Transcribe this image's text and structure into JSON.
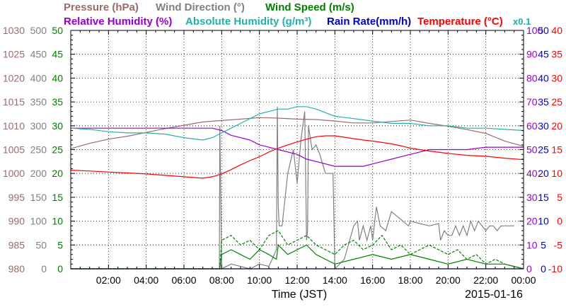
{
  "chart_data": {
    "type": "line",
    "date": "2015-01-16",
    "xlabel": "Time (JST)",
    "x_ticks": [
      "02:00",
      "04:00",
      "06:00",
      "08:00",
      "10:00",
      "12:00",
      "14:00",
      "16:00",
      "18:00",
      "20:00",
      "22:00",
      "00:00"
    ],
    "x_range_hours": [
      0,
      24
    ],
    "grid": true,
    "legend_row1": [
      {
        "text": "Pressure (hPa)",
        "color": "#9b6b6b"
      },
      {
        "text": "Wind Direction (°)",
        "color": "#808080"
      },
      {
        "text": "Wind Speed (m/s)",
        "color": "#008000"
      }
    ],
    "legend_row2": [
      {
        "text": "Relative Humidity (%)",
        "color": "#9400d3"
      },
      {
        "text": "Absolute Humidity (g/m³)",
        "color": "#20b2aa"
      },
      {
        "text": "Rain Rate(mm/h)",
        "color": "#0000cd"
      },
      {
        "text": "Temperature (°C)",
        "color": "#ff0000"
      },
      {
        "text": "x0.1",
        "color": "#20b2aa"
      }
    ],
    "axes": {
      "pressure": {
        "color": "#9b6b6b",
        "ticks": [
          "980",
          "985",
          "990",
          "995",
          "1000",
          "1005",
          "1010",
          "1015",
          "1020",
          "1025",
          "1030"
        ],
        "range": [
          980,
          1030
        ]
      },
      "wind_dir": {
        "color": "#808080",
        "ticks": [
          "0",
          "50",
          "100",
          "150",
          "200",
          "250",
          "300",
          "350",
          "400",
          "450",
          "500"
        ],
        "range": [
          0,
          500
        ]
      },
      "wind_speed": {
        "color": "#008000",
        "ticks": [
          "0",
          "5",
          "10",
          "15",
          "20",
          "25",
          "30",
          "35",
          "40",
          "45",
          "50"
        ],
        "range": [
          0,
          50
        ]
      },
      "humidity": {
        "color": "#9400d3",
        "ticks": [
          "0",
          "10",
          "20",
          "30",
          "40",
          "50",
          "60",
          "70",
          "80",
          "90",
          "100"
        ],
        "range": [
          0,
          100
        ]
      },
      "rain": {
        "color": "#0000cd",
        "ticks": [
          "0",
          "5",
          "10",
          "15",
          "20",
          "25",
          "30",
          "35",
          "40",
          "45",
          "50"
        ],
        "range": [
          0,
          50
        ]
      },
      "temperature": {
        "color": "#ff0000",
        "ticks": [
          "-10",
          "-5",
          "0",
          "5",
          "10",
          "15",
          "20",
          "25",
          "30",
          "35",
          "40"
        ],
        "range": [
          -10,
          40
        ]
      }
    },
    "series": [
      {
        "key": "pressure",
        "axis": "pressure",
        "color": "#9b6b6b",
        "dashed": false,
        "x": [
          0,
          1,
          2,
          3,
          4,
          5,
          6,
          7,
          8,
          9,
          10,
          11,
          12,
          13,
          14,
          15,
          16,
          17,
          18,
          19,
          20,
          21,
          22,
          23,
          24
        ],
        "y": [
          1005.2,
          1006.3,
          1007.2,
          1007.8,
          1008.6,
          1009.4,
          1010.1,
          1010.8,
          1011.1,
          1011.4,
          1011.7,
          1011.6,
          1011.4,
          1011.3,
          1011.0,
          1010.6,
          1010.6,
          1010.9,
          1011.2,
          1010.5,
          1009.9,
          1009.2,
          1008.4,
          1006.8,
          1005.7
        ]
      },
      {
        "key": "wind_direction",
        "axis": "wind_dir",
        "color": "#808080",
        "dashed": false,
        "x": [
          7.88,
          7.9,
          8.0,
          8.5,
          9.0,
          9.5,
          10.0,
          10.5,
          10.9,
          10.95,
          11.0,
          11.05,
          11.2,
          11.5,
          11.8,
          12.0,
          12.2,
          12.4,
          12.5,
          12.55,
          12.6,
          12.75,
          12.8,
          13.0,
          13.2,
          13.5,
          13.8,
          13.9,
          14.0,
          14.5,
          15.0,
          15.2,
          15.3,
          15.5,
          15.7,
          15.9,
          16.0,
          16.2,
          16.4,
          16.7,
          17.0,
          17.3,
          17.6,
          17.9,
          18.0,
          18.5,
          19.0,
          19.5,
          19.6,
          19.8,
          20.0,
          20.2,
          20.4,
          20.6,
          20.8,
          21.0,
          21.2,
          21.4,
          21.6,
          21.8,
          22.0,
          22.2,
          22.4,
          22.6,
          22.8,
          23.0,
          23.5
        ],
        "y": [
          0,
          300,
          0,
          10,
          5,
          0,
          10,
          5,
          40,
          340,
          130,
          90,
          90,
          200,
          250,
          180,
          270,
          330,
          60,
          80,
          300,
          260,
          250,
          260,
          240,
          200,
          200,
          200,
          0,
          20,
          90,
          100,
          60,
          90,
          60,
          90,
          60,
          130,
          90,
          80,
          120,
          110,
          100,
          90,
          100,
          95,
          90,
          95,
          60,
          80,
          70,
          70,
          90,
          70,
          90,
          70,
          100,
          80,
          100,
          90,
          80,
          90,
          90,
          80,
          90,
          90,
          90
        ]
      },
      {
        "key": "wind_speed",
        "axis": "wind_speed",
        "color": "#008000",
        "dashed": false,
        "x": [
          0,
          7.9,
          8.0,
          8.5,
          9.0,
          9.5,
          10.0,
          10.5,
          10.9,
          11.0,
          11.5,
          12.0,
          12.5,
          13.0,
          13.5,
          14.0,
          15.0,
          16.0,
          17.0,
          18.0,
          19.0,
          20.0,
          21.0,
          22.0,
          23.0,
          24.0
        ],
        "y": [
          0,
          0,
          3,
          4,
          3,
          2,
          4,
          3,
          2,
          5,
          3,
          4,
          5,
          3,
          2,
          1,
          2,
          3,
          2,
          3,
          2,
          1,
          2,
          1,
          1,
          0
        ]
      },
      {
        "key": "wind_speed_gust",
        "axis": "wind_speed",
        "color": "#008000",
        "dashed": true,
        "x": [
          0,
          7.9,
          8.0,
          8.5,
          9.0,
          9.5,
          10.0,
          10.5,
          11.0,
          11.5,
          12.0,
          12.5,
          13.0,
          13.5,
          14.0,
          14.5,
          15.0,
          15.5,
          16.0,
          16.5,
          17.0,
          17.5,
          18.0,
          18.5,
          19.0,
          19.5,
          20.0,
          20.5,
          21.0,
          21.5,
          22.0,
          22.5,
          23.0,
          24.0
        ],
        "y": [
          0,
          0,
          6,
          7,
          5,
          6,
          4,
          7,
          8,
          5,
          6,
          7,
          5,
          4,
          3,
          5,
          6,
          4,
          5,
          7,
          4,
          5,
          3,
          4,
          5,
          4,
          3,
          4,
          2,
          3,
          1,
          2,
          1,
          0
        ]
      },
      {
        "key": "relative_humidity",
        "axis": "humidity",
        "color": "#9400d3",
        "dashed": false,
        "x": [
          0,
          1,
          2,
          3,
          4,
          5,
          6,
          7,
          7.5,
          8.0,
          8.5,
          9.0,
          9.5,
          10.0,
          10.5,
          11.0,
          12.0,
          12.5,
          13.0,
          13.5,
          14.0,
          14.5,
          15.0,
          15.5,
          16.0,
          16.5,
          17.0,
          17.5,
          18.0,
          18.5,
          19.0,
          19.5,
          20.0,
          21.0,
          22.0,
          23.0,
          24.0
        ],
        "y": [
          59,
          59,
          59,
          59,
          59,
          59,
          59,
          59,
          59,
          58,
          56,
          55,
          54,
          52,
          51,
          50,
          48,
          46,
          45,
          44,
          43,
          43,
          43,
          43,
          44,
          45,
          46,
          47,
          48,
          49,
          50,
          50,
          50,
          50,
          51,
          51,
          51
        ]
      },
      {
        "key": "absolute_humidity",
        "axis": "humidity",
        "color": "#20b2aa",
        "dashed": false,
        "x": [
          0,
          1,
          2,
          3,
          4,
          5,
          6,
          7,
          7.5,
          8.0,
          8.5,
          9.0,
          9.5,
          10.0,
          10.5,
          11.0,
          11.5,
          12.0,
          12.5,
          13.0,
          14.0,
          15.0,
          16.0,
          17.0,
          18.0,
          19.0,
          20.0,
          21.0,
          22.0,
          23.0,
          24.0
        ],
        "y": [
          59,
          58.5,
          57.5,
          57,
          57,
          56.5,
          55,
          54,
          55,
          57,
          59,
          61,
          63,
          65,
          66,
          67,
          67,
          68,
          68,
          67,
          64,
          63,
          62,
          61,
          61,
          60,
          60,
          59,
          59,
          58.5,
          58
        ]
      },
      {
        "key": "temperature",
        "axis": "temperature",
        "color": "#ff0000",
        "dashed": false,
        "x": [
          0,
          1,
          2,
          3,
          4,
          5,
          6,
          7,
          7.5,
          8.0,
          8.5,
          9.0,
          9.5,
          10.0,
          10.5,
          11.0,
          11.5,
          12.0,
          12.5,
          13.0,
          13.5,
          14.0,
          14.5,
          15.0,
          15.5,
          16.0,
          16.5,
          17.0,
          17.5,
          18.0,
          19.0,
          20.0,
          21.0,
          22.0,
          23.0,
          24.0
        ],
        "y": [
          10.7,
          10.5,
          10.3,
          10.1,
          9.9,
          9.6,
          9.3,
          9.0,
          9.3,
          9.9,
          10.8,
          11.8,
          12.7,
          13.5,
          14.5,
          15.3,
          16.0,
          16.6,
          17.2,
          17.7,
          17.9,
          17.9,
          17.6,
          17.3,
          17.0,
          16.8,
          16.5,
          16.2,
          15.8,
          15.3,
          14.7,
          14.2,
          13.8,
          13.6,
          13.2,
          12.9
        ]
      },
      {
        "key": "rain_rate",
        "axis": "rain",
        "color": "#0000cd",
        "dashed": false,
        "x": [
          0,
          24
        ],
        "y": [
          0,
          0
        ]
      }
    ]
  }
}
